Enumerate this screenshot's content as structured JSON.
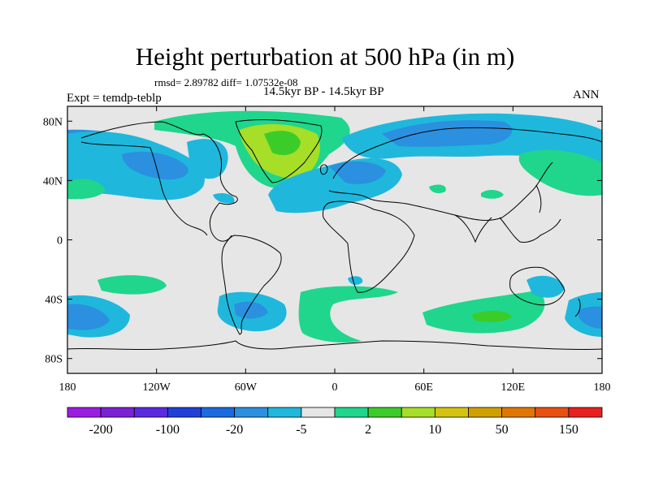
{
  "title": "Height perturbation at 500 hPa (in m)",
  "stats": "rmsd= 2.89782 diff= 1.07532e-08",
  "subtitle": "14.5kyr BP - 14.5kyr BP",
  "left_label": "Expt = temdp-teblp",
  "right_label": "ANN",
  "map": {
    "projection": "cylindrical-equidistant",
    "background_color": "#e6e6e6",
    "lat_range": [
      -90,
      90
    ],
    "lon_range": [
      -180,
      180
    ],
    "lat_ticks": [
      "80N",
      "40N",
      "0",
      "40S",
      "80S"
    ],
    "lat_tick_values": [
      80,
      40,
      0,
      -40,
      -80
    ],
    "lon_ticks": [
      "180",
      "120W",
      "60W",
      "0",
      "60E",
      "120E",
      "180"
    ],
    "lon_tick_values": [
      -180,
      -120,
      -60,
      0,
      60,
      120,
      180
    ]
  },
  "colorbar": {
    "colors": [
      "#9b1de2",
      "#7b22d6",
      "#5a2ae0",
      "#2040d8",
      "#1a6ae0",
      "#2b90e0",
      "#1fb8dc",
      "#e6e6e6",
      "#1fd68c",
      "#3ccc2a",
      "#a6de28",
      "#d4c410",
      "#d0a000",
      "#e07800",
      "#e85010",
      "#e82020"
    ],
    "labels": [
      "-200",
      "-100",
      "-20",
      "-5",
      "2",
      "10",
      "50",
      "150"
    ]
  }
}
